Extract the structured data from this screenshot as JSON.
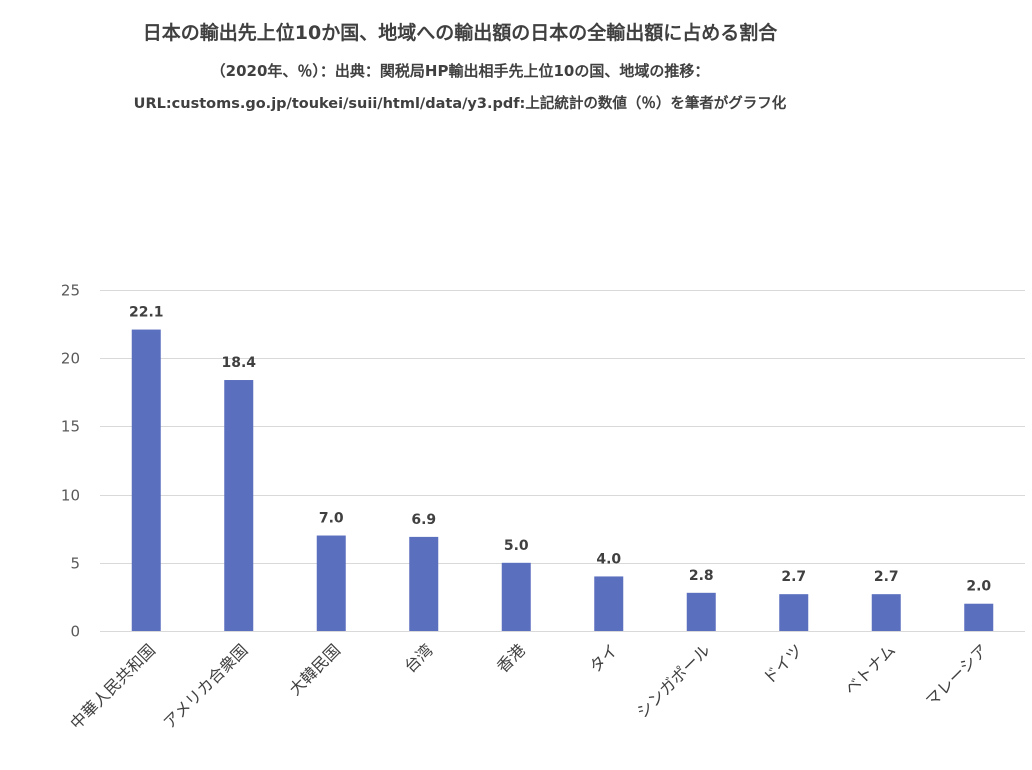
{
  "chart_data": {
    "type": "bar",
    "title": "日本の輸出先上位10か国、地域への輸出額の日本の全輸出額に占める割合",
    "subtitle": "（2020年、％）：出典：関税局HP輸出相手先上位10の国、地域の推移：",
    "subtitle2": "URL:customs.go.jp/toukei/suii/html/data/y3.pdf:上記統計の数値（％）を筆者がグラフ化",
    "categories": [
      "中華人民共和国",
      "アメリカ合衆国",
      "大韓民国",
      "台湾",
      "香港",
      "タイ",
      "シンガポール",
      "ドイツ",
      "ベトナム",
      "マレーシア"
    ],
    "values": [
      22.1,
      18.4,
      7.0,
      6.9,
      5.0,
      4.0,
      2.8,
      2.7,
      2.7,
      2.0
    ],
    "data_labels": [
      "22.1",
      "18.4",
      "7.0",
      "6.9",
      "5.0",
      "4.0",
      "2.8",
      "2.7",
      "2.7",
      "2.0"
    ],
    "ylim": [
      0,
      25
    ],
    "yticks": [
      0,
      5,
      10,
      15,
      20,
      25
    ],
    "grid": true,
    "bar_color": "#5B6FBF",
    "grid_color": "#D9D9D9"
  }
}
